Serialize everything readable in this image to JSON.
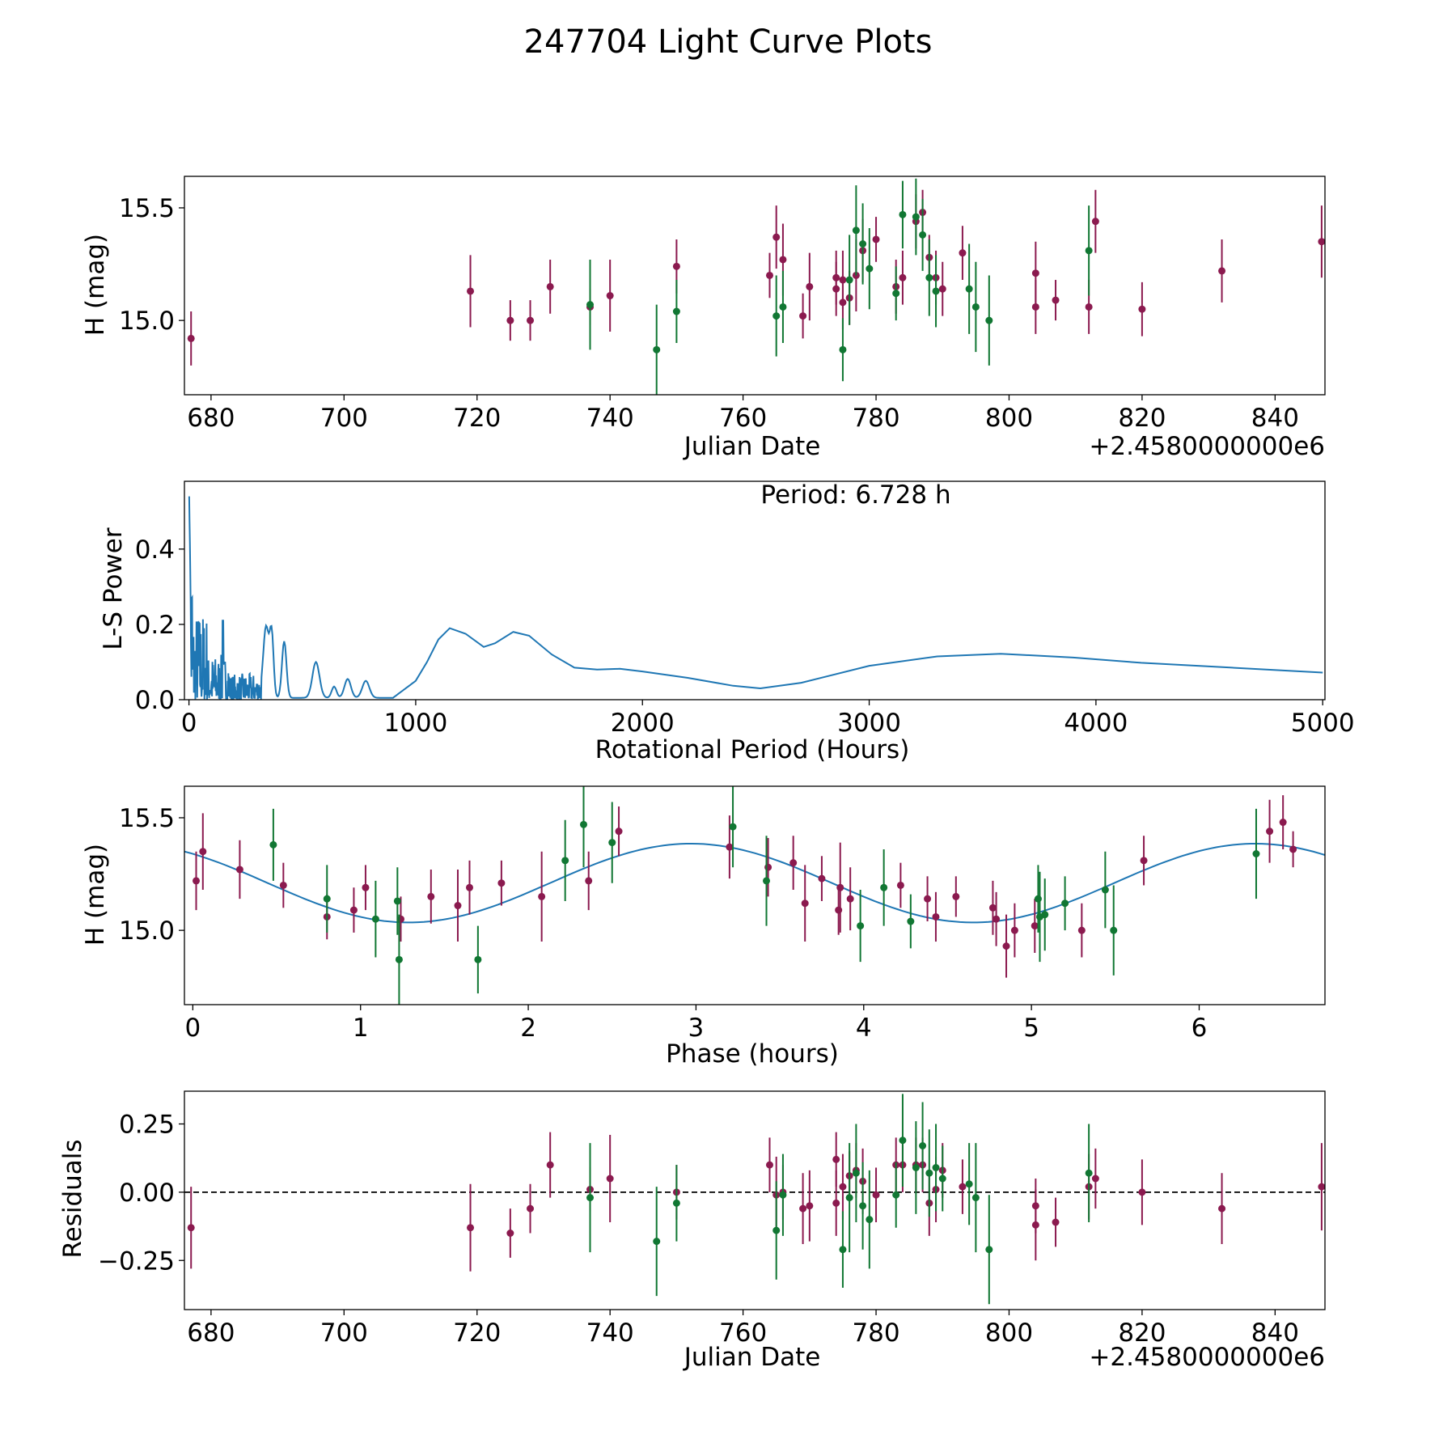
{
  "figure": {
    "title": "247704 Light Curve Plots"
  },
  "colors": {
    "magenta": "#8b1a4f",
    "green": "#117733",
    "curve": "#1f77b4"
  },
  "chart_data": [
    {
      "id": "lightcurve",
      "type": "scatter",
      "xlabel": "Julian Date",
      "ylabel": "H (mag)",
      "offset_label": "+2.4580000000e6",
      "xlim": [
        676,
        847.5
      ],
      "ylim": [
        14.67,
        15.64
      ],
      "xticks": [
        680,
        700,
        720,
        740,
        760,
        780,
        800,
        820,
        840
      ],
      "yticks": [
        15.0,
        15.5
      ],
      "ytick_labels": [
        "15.0",
        "15.5"
      ],
      "series": [
        {
          "name": "magenta",
          "color": "magenta",
          "points": [
            [
              677,
              14.92,
              0.12
            ],
            [
              719,
              15.13,
              0.16
            ],
            [
              725,
              15.0,
              0.09
            ],
            [
              728,
              15.0,
              0.09
            ],
            [
              731,
              15.15,
              0.12
            ],
            [
              737,
              15.06,
              0.08
            ],
            [
              740,
              15.11,
              0.16
            ],
            [
              750,
              15.24,
              0.12
            ],
            [
              764,
              15.2,
              0.1
            ],
            [
              765,
              15.37,
              0.14
            ],
            [
              766,
              15.27,
              0.16
            ],
            [
              769,
              15.02,
              0.1
            ],
            [
              770,
              15.15,
              0.15
            ],
            [
              774,
              15.14,
              0.12
            ],
            [
              774,
              15.19,
              0.12
            ],
            [
              775,
              15.08,
              0.12
            ],
            [
              775,
              15.18,
              0.13
            ],
            [
              776,
              15.1,
              0.12
            ],
            [
              777,
              15.2,
              0.16
            ],
            [
              778,
              15.31,
              0.14
            ],
            [
              780,
              15.36,
              0.1
            ],
            [
              783,
              15.15,
              0.12
            ],
            [
              784,
              15.19,
              0.12
            ],
            [
              786,
              15.44,
              0.12
            ],
            [
              787,
              15.48,
              0.1
            ],
            [
              788,
              15.28,
              0.1
            ],
            [
              789,
              15.19,
              0.12
            ],
            [
              790,
              15.14,
              0.12
            ],
            [
              793,
              15.3,
              0.12
            ],
            [
              804,
              15.21,
              0.14
            ],
            [
              804,
              15.06,
              0.12
            ],
            [
              807,
              15.09,
              0.09
            ],
            [
              812,
              15.06,
              0.12
            ],
            [
              813,
              15.44,
              0.14
            ],
            [
              820,
              15.05,
              0.12
            ],
            [
              832,
              15.22,
              0.14
            ],
            [
              847,
              15.35,
              0.16
            ]
          ]
        },
        {
          "name": "green",
          "color": "green",
          "points": [
            [
              737,
              15.07,
              0.2
            ],
            [
              747,
              14.87,
              0.2
            ],
            [
              750,
              15.04,
              0.14
            ],
            [
              765,
              15.02,
              0.18
            ],
            [
              766,
              15.06,
              0.16
            ],
            [
              775,
              14.87,
              0.14
            ],
            [
              776,
              15.18,
              0.2
            ],
            [
              777,
              15.4,
              0.2
            ],
            [
              778,
              15.34,
              0.18
            ],
            [
              779,
              15.23,
              0.18
            ],
            [
              783,
              15.12,
              0.12
            ],
            [
              784,
              15.47,
              0.15
            ],
            [
              786,
              15.46,
              0.17
            ],
            [
              787,
              15.38,
              0.16
            ],
            [
              788,
              15.19,
              0.17
            ],
            [
              789,
              15.13,
              0.16
            ],
            [
              794,
              15.14,
              0.2
            ],
            [
              795,
              15.06,
              0.2
            ],
            [
              797,
              15.0,
              0.2
            ],
            [
              812,
              15.31,
              0.2
            ]
          ]
        }
      ]
    },
    {
      "id": "periodogram",
      "type": "line",
      "xlabel": "Rotational Period (Hours)",
      "ylabel": "L-S Power",
      "annotation": "Period: 6.728 h",
      "xlim": [
        -20,
        5010
      ],
      "ylim": [
        0,
        0.58
      ],
      "xticks": [
        0,
        1000,
        2000,
        3000,
        4000,
        5000
      ],
      "yticks": [
        0.0,
        0.2,
        0.4
      ],
      "ytick_labels": [
        "0.0",
        "0.2",
        "0.4"
      ],
      "line": [
        [
          1000,
          0.05
        ],
        [
          1050,
          0.1
        ],
        [
          1100,
          0.16
        ],
        [
          1150,
          0.19
        ],
        [
          1220,
          0.175
        ],
        [
          1300,
          0.14
        ],
        [
          1350,
          0.15
        ],
        [
          1430,
          0.18
        ],
        [
          1500,
          0.17
        ],
        [
          1600,
          0.12
        ],
        [
          1700,
          0.085
        ],
        [
          1800,
          0.08
        ],
        [
          1900,
          0.082
        ],
        [
          2000,
          0.075
        ],
        [
          2200,
          0.058
        ],
        [
          2400,
          0.037
        ],
        [
          2520,
          0.03
        ],
        [
          2700,
          0.045
        ],
        [
          3000,
          0.09
        ],
        [
          3300,
          0.115
        ],
        [
          3580,
          0.122
        ],
        [
          3900,
          0.112
        ],
        [
          4200,
          0.098
        ],
        [
          4600,
          0.085
        ],
        [
          5000,
          0.072
        ]
      ]
    },
    {
      "id": "phase",
      "type": "scatter",
      "xlabel": "Phase (hours)",
      "ylabel": "H (mag)",
      "xlim": [
        -0.05,
        6.75
      ],
      "ylim": [
        14.67,
        15.64
      ],
      "xticks": [
        0,
        1,
        2,
        3,
        4,
        5,
        6
      ],
      "yticks": [
        15.0,
        15.5
      ],
      "ytick_labels": [
        "15.0",
        "15.5"
      ],
      "fit": {
        "mean": 15.21,
        "amp": 0.175,
        "peak_phase": 2.97,
        "period": 6.728
      },
      "series": [
        {
          "name": "magenta",
          "color": "magenta",
          "points": [
            [
              0.02,
              15.22,
              0.13
            ],
            [
              0.06,
              15.35,
              0.17
            ],
            [
              0.28,
              15.27,
              0.13
            ],
            [
              0.54,
              15.2,
              0.1
            ],
            [
              0.8,
              15.06,
              0.1
            ],
            [
              0.96,
              15.09,
              0.1
            ],
            [
              1.03,
              15.19,
              0.1
            ],
            [
              1.24,
              15.05,
              0.1
            ],
            [
              1.42,
              15.15,
              0.12
            ],
            [
              1.58,
              15.11,
              0.16
            ],
            [
              1.65,
              15.19,
              0.12
            ],
            [
              1.84,
              15.21,
              0.1
            ],
            [
              2.08,
              15.15,
              0.2
            ],
            [
              2.36,
              15.22,
              0.13
            ],
            [
              2.54,
              15.44,
              0.11
            ],
            [
              3.2,
              15.37,
              0.14
            ],
            [
              3.43,
              15.28,
              0.13
            ],
            [
              3.58,
              15.3,
              0.12
            ],
            [
              3.65,
              15.12,
              0.17
            ],
            [
              3.75,
              15.23,
              0.1
            ],
            [
              3.85,
              15.09,
              0.11
            ],
            [
              3.86,
              15.19,
              0.2
            ],
            [
              3.92,
              15.14,
              0.14
            ],
            [
              4.22,
              15.2,
              0.1
            ],
            [
              4.38,
              15.14,
              0.1
            ],
            [
              4.43,
              15.06,
              0.11
            ],
            [
              4.55,
              15.15,
              0.09
            ],
            [
              4.77,
              15.1,
              0.12
            ],
            [
              4.79,
              15.05,
              0.12
            ],
            [
              4.85,
              14.93,
              0.14
            ],
            [
              4.9,
              15.0,
              0.12
            ],
            [
              5.02,
              15.02,
              0.12
            ],
            [
              5.3,
              15.0,
              0.12
            ],
            [
              5.67,
              15.31,
              0.11
            ],
            [
              6.42,
              15.44,
              0.14
            ],
            [
              6.5,
              15.48,
              0.12
            ],
            [
              6.56,
              15.36,
              0.08
            ]
          ]
        },
        {
          "name": "green",
          "color": "green",
          "points": [
            [
              0.48,
              15.38,
              0.16
            ],
            [
              0.8,
              15.14,
              0.15
            ],
            [
              1.09,
              15.05,
              0.17
            ],
            [
              1.22,
              15.13,
              0.15
            ],
            [
              1.23,
              14.87,
              0.2
            ],
            [
              1.7,
              14.87,
              0.15
            ],
            [
              2.22,
              15.31,
              0.18
            ],
            [
              2.33,
              15.47,
              0.19
            ],
            [
              2.5,
              15.39,
              0.18
            ],
            [
              3.22,
              15.46,
              0.18
            ],
            [
              3.42,
              15.22,
              0.2
            ],
            [
              3.98,
              15.02,
              0.16
            ],
            [
              4.12,
              15.19,
              0.17
            ],
            [
              4.28,
              15.04,
              0.12
            ],
            [
              5.04,
              15.14,
              0.15
            ],
            [
              5.05,
              15.06,
              0.2
            ],
            [
              5.08,
              15.07,
              0.16
            ],
            [
              5.2,
              15.12,
              0.12
            ],
            [
              5.44,
              15.18,
              0.17
            ],
            [
              5.49,
              15.0,
              0.2
            ],
            [
              6.34,
              15.34,
              0.2
            ]
          ]
        }
      ]
    },
    {
      "id": "residuals",
      "type": "scatter",
      "xlabel": "Julian Date",
      "ylabel": "Residuals",
      "offset_label": "+2.4580000000e6",
      "xlim": [
        676,
        847.5
      ],
      "ylim": [
        -0.43,
        0.37
      ],
      "xticks": [
        680,
        700,
        720,
        740,
        760,
        780,
        800,
        820,
        840
      ],
      "yticks": [
        0.25,
        0.0,
        -0.25
      ],
      "ytick_labels": [
        "0.25",
        "0.00",
        "−0.25"
      ],
      "zero_line": 0,
      "series": [
        {
          "name": "magenta",
          "color": "magenta",
          "points": [
            [
              677,
              -0.13,
              0.15
            ],
            [
              719,
              -0.13,
              0.16
            ],
            [
              725,
              -0.15,
              0.09
            ],
            [
              728,
              -0.06,
              0.09
            ],
            [
              731,
              0.1,
              0.12
            ],
            [
              737,
              0.01,
              0.08
            ],
            [
              740,
              0.05,
              0.16
            ],
            [
              750,
              0.0,
              0.1
            ],
            [
              764,
              0.1,
              0.1
            ],
            [
              765,
              -0.01,
              0.14
            ],
            [
              766,
              0.0,
              0.1
            ],
            [
              769,
              -0.06,
              0.13
            ],
            [
              770,
              -0.05,
              0.13
            ],
            [
              774,
              -0.04,
              0.12
            ],
            [
              774,
              0.12,
              0.1
            ],
            [
              775,
              0.02,
              0.12
            ],
            [
              776,
              0.06,
              0.09
            ],
            [
              777,
              0.08,
              0.1
            ],
            [
              778,
              0.04,
              0.12
            ],
            [
              780,
              -0.01,
              0.1
            ],
            [
              783,
              0.1,
              0.1
            ],
            [
              784,
              0.1,
              0.1
            ],
            [
              786,
              0.1,
              0.1
            ],
            [
              787,
              0.1,
              0.1
            ],
            [
              788,
              -0.04,
              0.12
            ],
            [
              789,
              0.01,
              0.12
            ],
            [
              790,
              0.08,
              0.1
            ],
            [
              793,
              0.02,
              0.1
            ],
            [
              804,
              -0.05,
              0.1
            ],
            [
              804,
              -0.12,
              0.13
            ],
            [
              807,
              -0.11,
              0.09
            ],
            [
              812,
              0.02,
              0.12
            ],
            [
              813,
              0.05,
              0.11
            ],
            [
              820,
              0.0,
              0.12
            ],
            [
              832,
              -0.06,
              0.13
            ],
            [
              847,
              0.02,
              0.16
            ]
          ]
        },
        {
          "name": "green",
          "color": "green",
          "points": [
            [
              737,
              -0.02,
              0.2
            ],
            [
              747,
              -0.18,
              0.2
            ],
            [
              750,
              -0.04,
              0.14
            ],
            [
              765,
              -0.14,
              0.18
            ],
            [
              766,
              -0.01,
              0.15
            ],
            [
              775,
              -0.21,
              0.14
            ],
            [
              776,
              -0.02,
              0.2
            ],
            [
              777,
              0.07,
              0.18
            ],
            [
              778,
              -0.05,
              0.16
            ],
            [
              779,
              -0.1,
              0.18
            ],
            [
              783,
              -0.01,
              0.12
            ],
            [
              784,
              0.19,
              0.17
            ],
            [
              786,
              0.09,
              0.17
            ],
            [
              787,
              0.17,
              0.16
            ],
            [
              788,
              0.07,
              0.16
            ],
            [
              789,
              0.09,
              0.16
            ],
            [
              790,
              0.05,
              0.12
            ],
            [
              794,
              0.03,
              0.15
            ],
            [
              795,
              -0.02,
              0.2
            ],
            [
              797,
              -0.21,
              0.2
            ],
            [
              812,
              0.07,
              0.18
            ]
          ]
        }
      ]
    }
  ]
}
